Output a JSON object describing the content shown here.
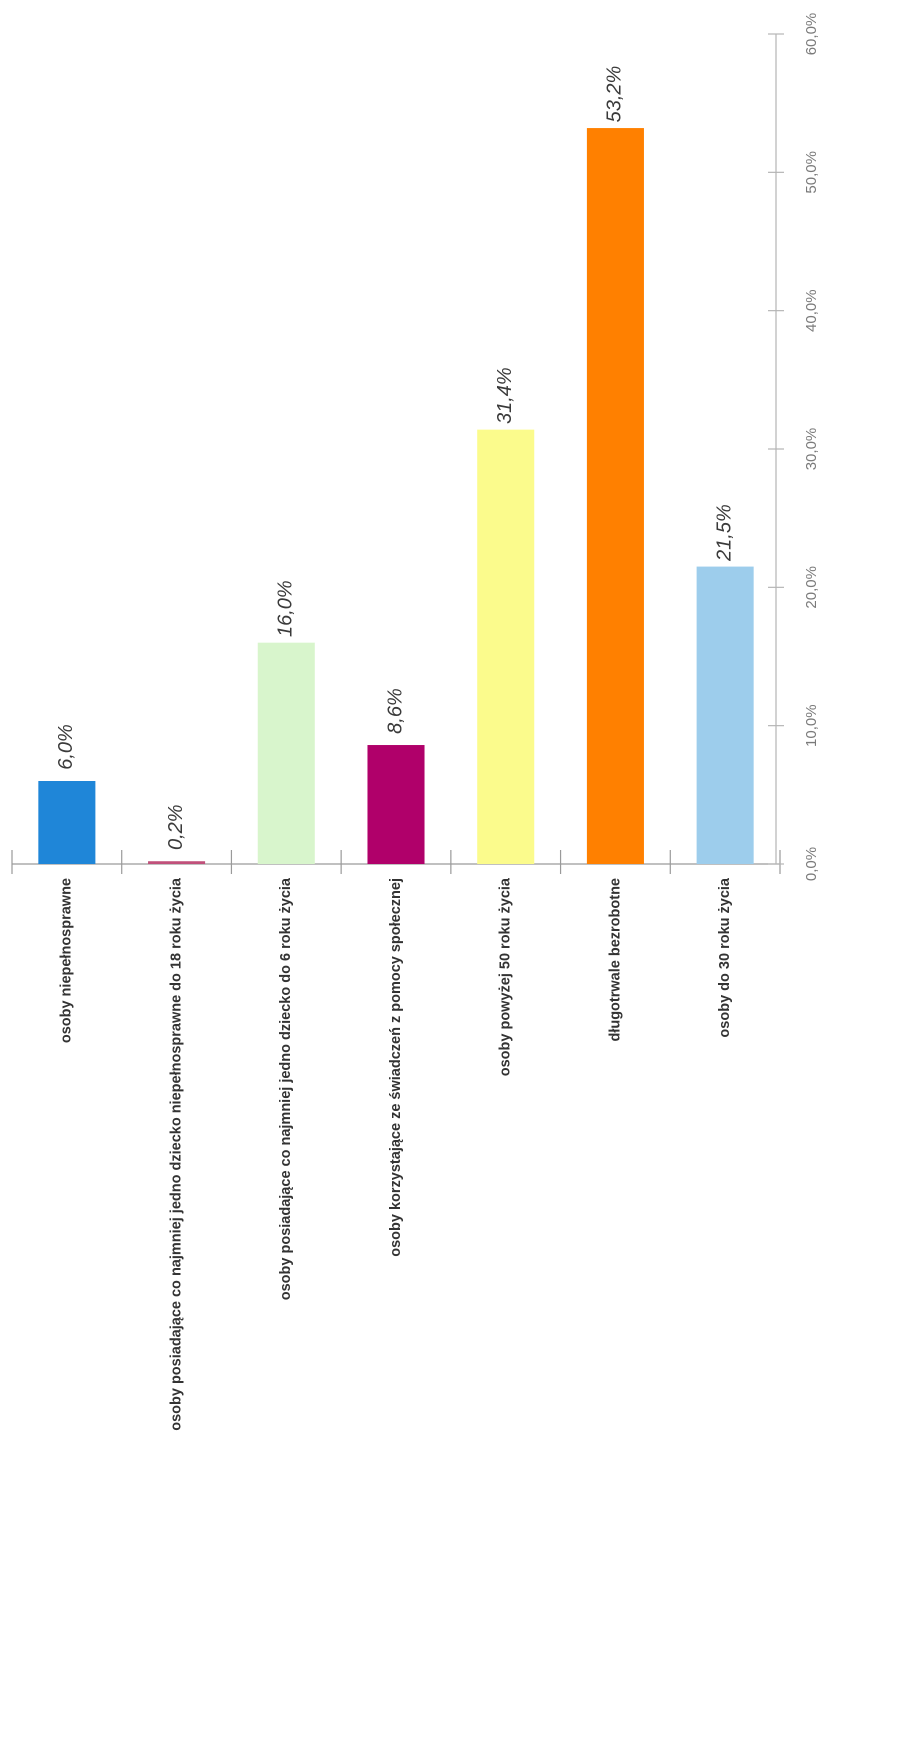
{
  "chart_data": {
    "type": "bar",
    "orientation": "rotated",
    "categories": [
      "osoby niepełnosprawne",
      "osoby posiadające co najmniej jedno dziecko niepełnosprawne do 18 roku życia",
      "osoby posiadające co najmniej jedno dziecko do 6 roku życia",
      "osoby korzystające ze świadczeń z pomocy społecznej",
      "osoby powyżej 50 roku życia",
      "długotrwale bezrobotne",
      "osoby do 30 roku życia"
    ],
    "values": [
      6.0,
      0.2,
      16.0,
      8.6,
      31.4,
      53.2,
      21.5
    ],
    "data_labels": [
      "6,0%",
      "0,2%",
      "16,0%",
      "8,6%",
      "31,4%",
      "53,2%",
      "21,5%"
    ],
    "colors": [
      "#1f86d8",
      "#c0507a",
      "#d8f5cc",
      "#b0006a",
      "#fbfb8c",
      "#ff8000",
      "#9dcdec"
    ],
    "value_ticks": [
      0,
      10,
      20,
      30,
      40,
      50,
      60
    ],
    "value_tick_labels": [
      "0,0%",
      "10,0%",
      "20,0%",
      "30,0%",
      "40,0%",
      "50,0%",
      "60,0%"
    ],
    "ylim": [
      0,
      60
    ],
    "grid": false,
    "legend": "none"
  }
}
